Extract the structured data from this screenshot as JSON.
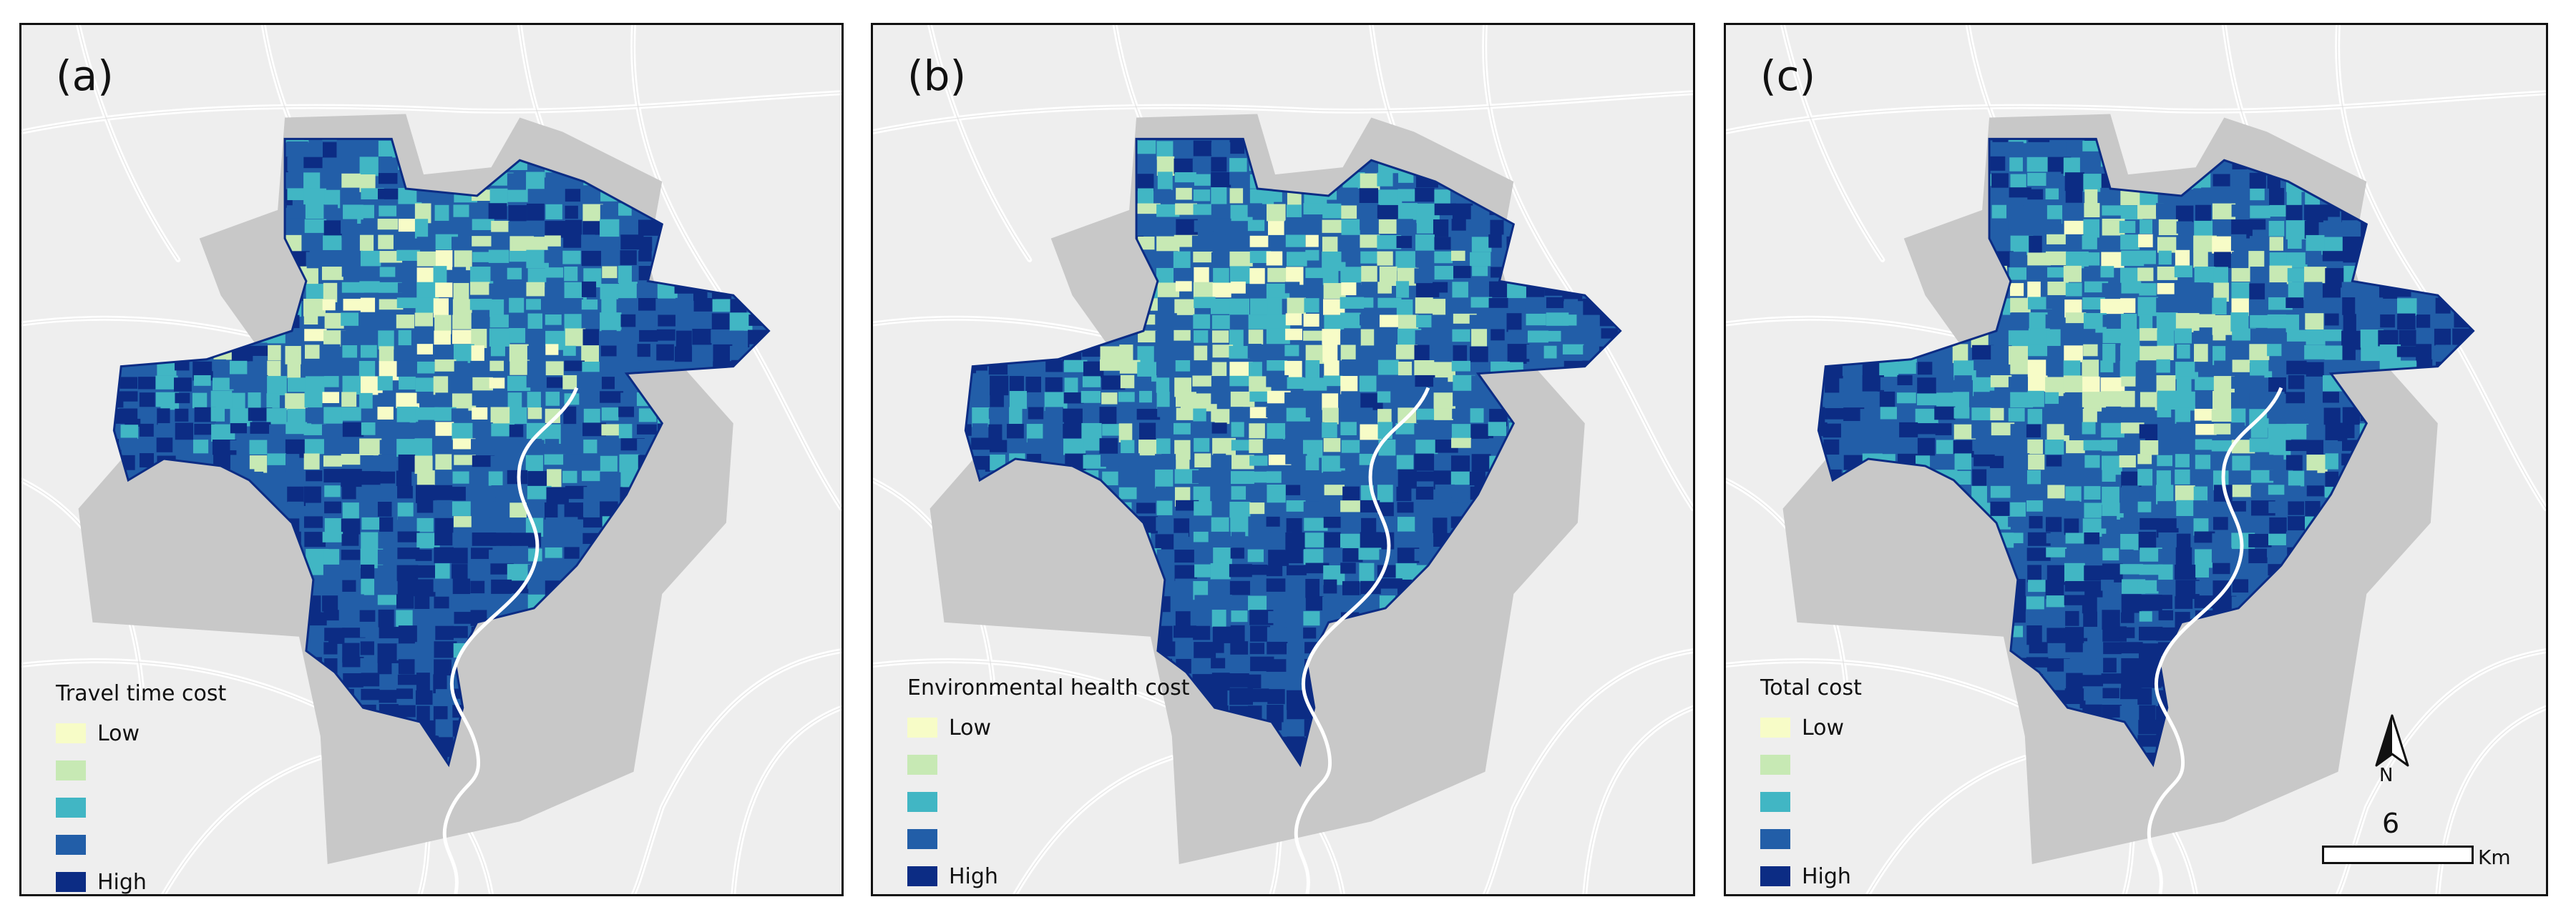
{
  "colors": {
    "background": "#eeeeee",
    "roads": "#ffffff",
    "outside_area": "#c8c8c8",
    "class_1": "#f7fcc7",
    "class_2": "#c7e9b4",
    "class_3": "#41b6c4",
    "class_4": "#225ea8",
    "class_5": "#0c2c84"
  },
  "panels": [
    {
      "label": "(a)",
      "legend_title": "Travel time cost",
      "legend_labels": [
        "Low",
        "",
        "",
        "",
        "High"
      ]
    },
    {
      "label": "(b)",
      "legend_title": "Environmental health cost",
      "legend_labels": [
        "Low",
        "",
        "",
        "",
        "High"
      ]
    },
    {
      "label": "(c)",
      "legend_title": "Total cost",
      "legend_labels": [
        "Low",
        "",
        "",
        "",
        "High"
      ]
    }
  ],
  "north_arrow": {
    "label": "N"
  },
  "scale_bar": {
    "value": "6",
    "unit": "Km"
  }
}
